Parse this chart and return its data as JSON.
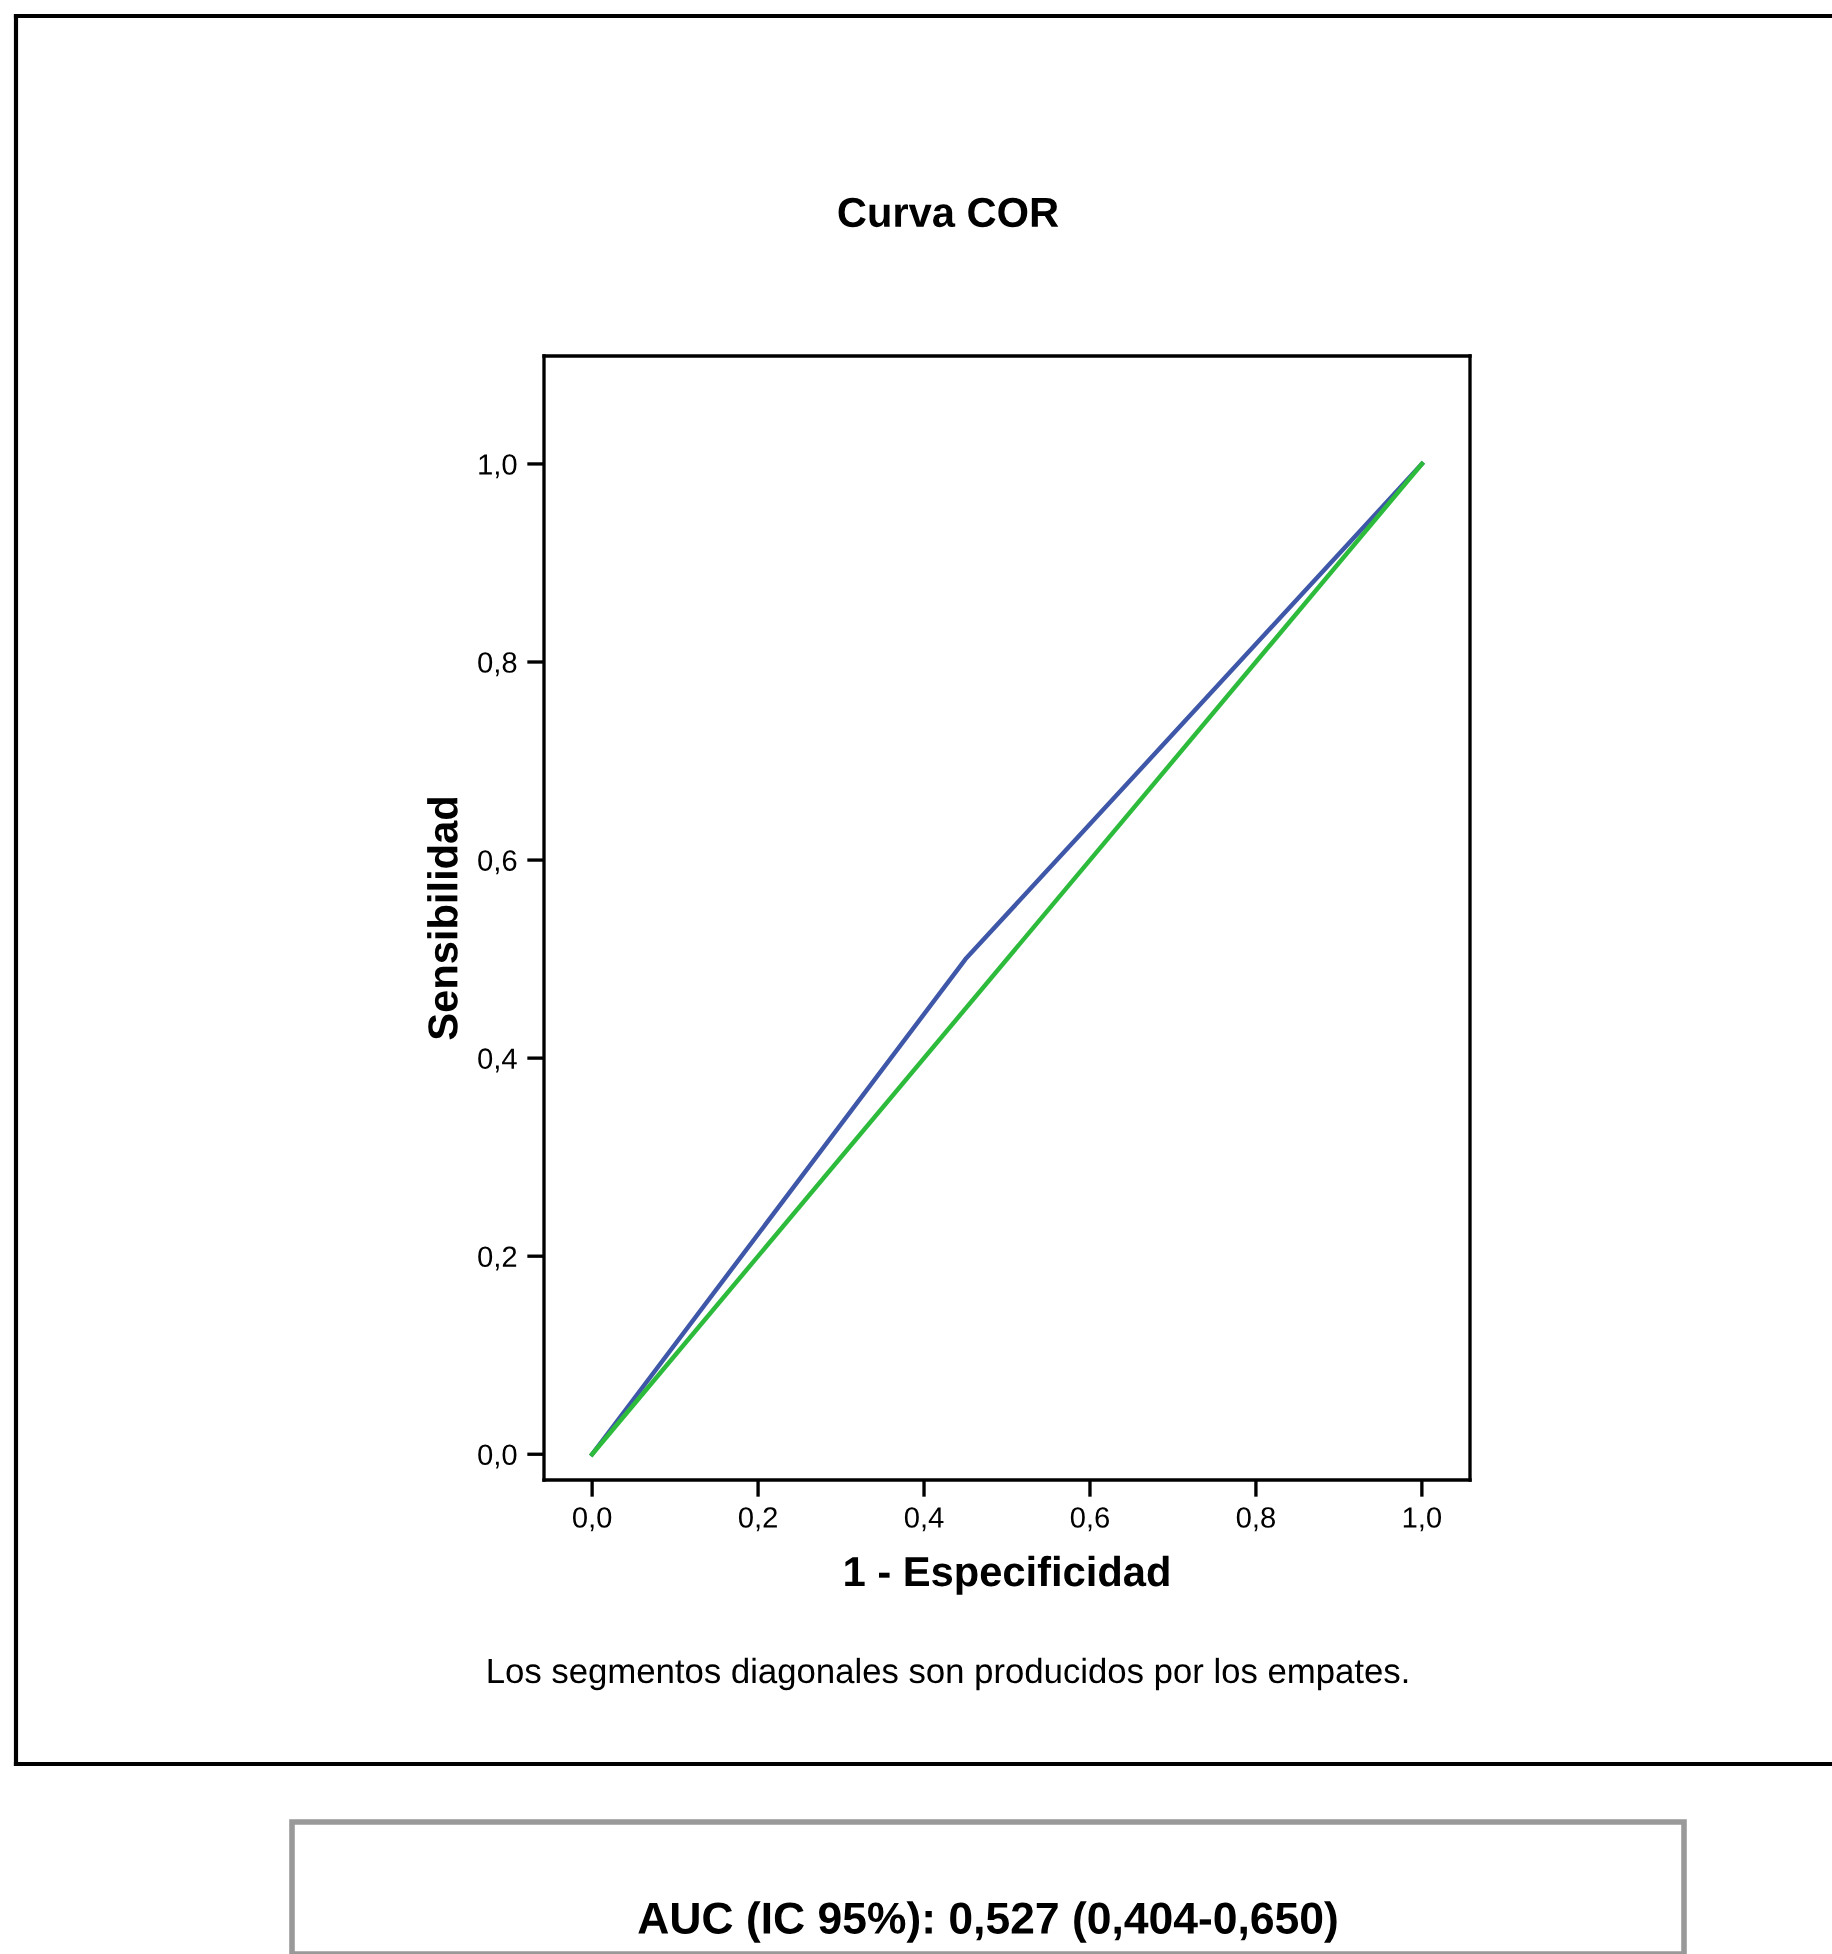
{
  "chart_data": {
    "type": "line",
    "title": "Curva COR",
    "xlabel": "1 - Especificidad",
    "ylabel": "Sensibilidad",
    "series": [
      {
        "color": "#3f57a8",
        "x": [
          0,
          0.45,
          1
        ],
        "values": [
          0,
          0.5,
          1
        ]
      },
      {
        "color": "#2dbb3c",
        "x": [
          0,
          1
        ],
        "values": [
          0,
          1
        ]
      }
    ],
    "xlim": [
      -0.058,
      1.058
    ],
    "ylim": [
      -0.026,
      1.109
    ],
    "xticks": [
      {
        "value": 0,
        "label": "0,0"
      },
      {
        "value": 0.2,
        "label": "0,2"
      },
      {
        "value": 0.4,
        "label": "0,4"
      },
      {
        "value": 0.6,
        "label": "0,6"
      },
      {
        "value": 0.8,
        "label": "0,8"
      },
      {
        "value": 1,
        "label": "1,0"
      }
    ],
    "yticks": [
      {
        "value": 0,
        "label": "0,0"
      },
      {
        "value": 0.2,
        "label": "0,2"
      },
      {
        "value": 0.4,
        "label": "0,4"
      },
      {
        "value": 0.6,
        "label": "0,6"
      },
      {
        "value": 0.8,
        "label": "0,8"
      },
      {
        "value": 1,
        "label": "1,0"
      }
    ],
    "grid": false,
    "legend": false,
    "marker": "none",
    "line_style": "solid",
    "annotations": [
      "Los segmentos diagonales son producidos por los empates.",
      "AUC (IC 95%): 0,527 (0,404-0,650)"
    ]
  }
}
